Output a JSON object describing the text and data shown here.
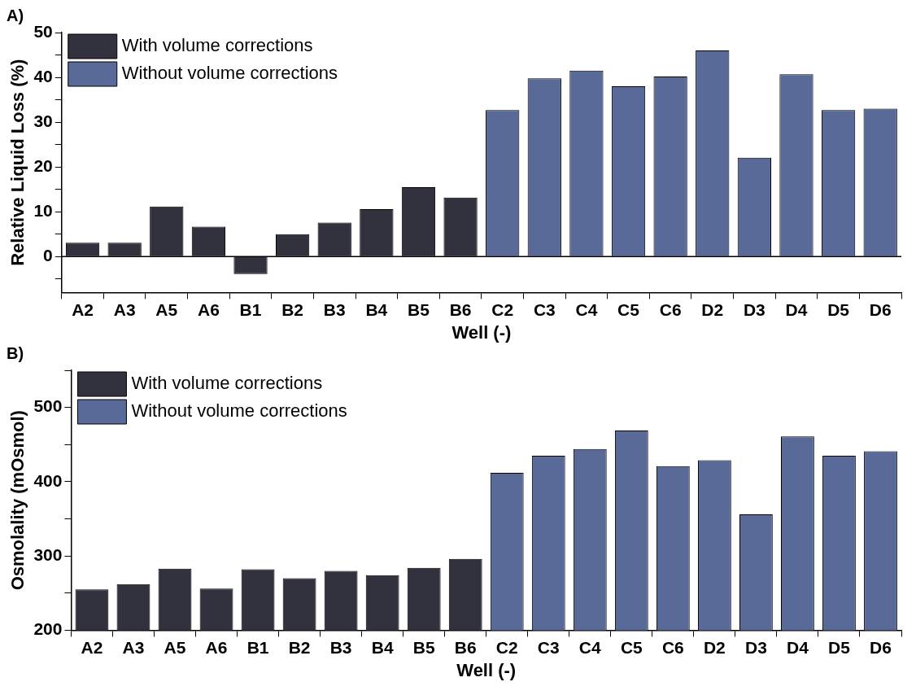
{
  "chart_data": [
    {
      "type": "bar",
      "title": "A)",
      "xlabel": "Well (-)",
      "ylabel": "Relative Liquid Loss (%)",
      "categories": [
        "A2",
        "A3",
        "A5",
        "A6",
        "B1",
        "B2",
        "B3",
        "B4",
        "B5",
        "B6",
        "C2",
        "C3",
        "C4",
        "C5",
        "C6",
        "D2",
        "D3",
        "D4",
        "D5",
        "D6"
      ],
      "series": [
        {
          "name": "With volume corrections",
          "color": "#32323f",
          "values": [
            3.1,
            3.1,
            11.2,
            6.7,
            -3.9,
            5.0,
            7.6,
            10.6,
            15.5,
            13.2,
            null,
            null,
            null,
            null,
            null,
            null,
            null,
            null,
            null,
            null
          ]
        },
        {
          "name": "Without volume corrections",
          "color": "#596a98",
          "values": [
            null,
            null,
            null,
            null,
            null,
            null,
            null,
            null,
            null,
            null,
            32.7,
            39.8,
            41.5,
            38.0,
            40.2,
            46.0,
            22.1,
            40.7,
            32.7,
            33.0
          ]
        }
      ],
      "ylim": [
        -8,
        50
      ],
      "yticks": [
        {
          "value": -5,
          "label": null
        },
        0,
        {
          "value": 5,
          "label": null
        },
        10,
        {
          "value": 15,
          "label": null
        },
        20,
        {
          "value": 25,
          "label": null
        },
        30,
        {
          "value": 35,
          "label": null
        },
        40,
        {
          "value": 45,
          "label": null
        },
        50
      ],
      "ref_lines": [
        {
          "axis": "y",
          "value": 0,
          "color": "#000000"
        }
      ],
      "legend": "top left"
    },
    {
      "type": "bar",
      "title": "B)",
      "xlabel": "Well (-)",
      "ylabel": "Osmolality (mOsmol)",
      "categories": [
        "A2",
        "A3",
        "A5",
        "A6",
        "B1",
        "B2",
        "B3",
        "B4",
        "B5",
        "B6",
        "C2",
        "C3",
        "C4",
        "C5",
        "C6",
        "D2",
        "D3",
        "D4",
        "D5",
        "D6"
      ],
      "series": [
        {
          "name": "With volume corrections",
          "color": "#32323f",
          "values": [
            255,
            262,
            283,
            256,
            282,
            270,
            280,
            274,
            284,
            296,
            null,
            null,
            null,
            null,
            null,
            null,
            null,
            null,
            null,
            null
          ]
        },
        {
          "name": "Without volume corrections",
          "color": "#596a98",
          "values": [
            null,
            null,
            null,
            null,
            null,
            null,
            null,
            null,
            null,
            null,
            412,
            435,
            444,
            469,
            421,
            429,
            356,
            461,
            435,
            441
          ]
        }
      ],
      "ylim": [
        200,
        550
      ],
      "yticks": [
        200,
        {
          "value": 250,
          "label": null
        },
        300,
        {
          "value": 350,
          "label": null
        },
        400,
        {
          "value": 450,
          "label": null
        },
        500,
        {
          "value": 550,
          "label": null
        }
      ],
      "legend": "top left"
    }
  ]
}
